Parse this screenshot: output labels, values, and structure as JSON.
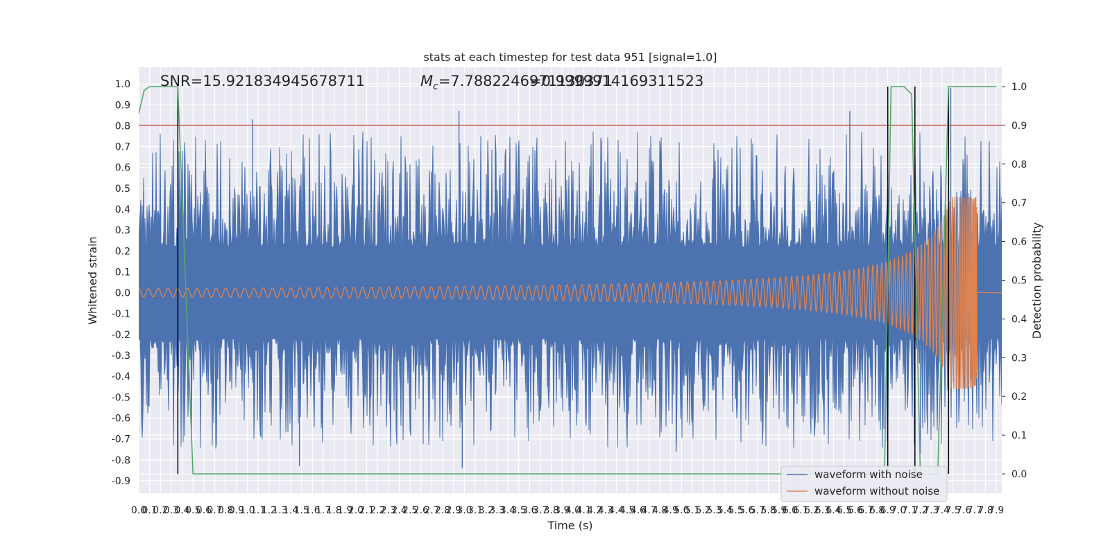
{
  "chart_data": {
    "type": "line",
    "title": "stats at each timestep for test data 951 [signal=1.0]",
    "xlabel": "Time (s)",
    "ylabel": "Whitened strain",
    "y2label": "Detection probability",
    "xlim": [
      0.0,
      7.95
    ],
    "ylim": [
      -0.96,
      1.08
    ],
    "y2lim": [
      -0.05,
      1.05
    ],
    "x_ticks": [
      "0.0",
      "0.1",
      "0.2",
      "0.3",
      "0.4",
      "0.5",
      "0.6",
      "0.7",
      "0.8",
      "0.9",
      "1.0",
      "1.1",
      "1.2",
      "1.3",
      "1.4",
      "1.5",
      "1.6",
      "1.7",
      "1.8",
      "1.9",
      "2.0",
      "2.1",
      "2.2",
      "2.3",
      "2.4",
      "2.5",
      "2.6",
      "2.7",
      "2.8",
      "2.9",
      "3.0",
      "3.1",
      "3.2",
      "3.3",
      "3.4",
      "3.5",
      "3.6",
      "3.7",
      "3.8",
      "3.9",
      "4.0",
      "4.1",
      "4.2",
      "4.3",
      "4.4",
      "4.5",
      "4.6",
      "4.7",
      "4.8",
      "4.9",
      "5.0",
      "5.1",
      "5.2",
      "5.3",
      "5.4",
      "5.5",
      "5.6",
      "5.7",
      "5.8",
      "5.9",
      "6.0",
      "6.1",
      "6.2",
      "6.3",
      "6.4",
      "6.5",
      "6.6",
      "6.7",
      "6.8",
      "6.9",
      "7.0",
      "7.1",
      "7.2",
      "7.3",
      "7.4",
      "7.5",
      "7.6",
      "7.7",
      "7.8",
      "7.9"
    ],
    "y_ticks": [
      "-0.9",
      "-0.8",
      "-0.7",
      "-0.6",
      "-0.5",
      "-0.4",
      "-0.3",
      "-0.2",
      "-0.1",
      "0.0",
      "0.1",
      "0.2",
      "0.3",
      "0.4",
      "0.5",
      "0.6",
      "0.7",
      "0.8",
      "0.9",
      "1.0"
    ],
    "y2_ticks": [
      "0.0",
      "0.1",
      "0.2",
      "0.3",
      "0.4",
      "0.5",
      "0.6",
      "0.7",
      "0.8",
      "0.9",
      "1.0"
    ],
    "annotations": {
      "snr": "SNR=15.921834945678711",
      "mc_symbol": "M",
      "mc_sub": "c",
      "mc_value": "=7.7882246971130371",
      "overlap_value": "=0.9999914169311523"
    },
    "series": [
      {
        "name": "waveform with noise",
        "color": "#4c72b0",
        "envelope_inner": 0.22,
        "peaks_to": 0.87,
        "troughs_to": -0.84
      },
      {
        "name": "waveform without noise",
        "color": "#dd8452",
        "start_amplitude": 0.02,
        "peak_amplitude": 0.46,
        "merger_time": 7.72
      }
    ],
    "detection_probability": {
      "color": "#55a868",
      "points": [
        [
          0.0,
          0.93
        ],
        [
          0.05,
          0.99
        ],
        [
          0.1,
          1.0
        ],
        [
          0.36,
          1.0
        ],
        [
          0.5,
          0.0
        ],
        [
          6.87,
          0.0
        ],
        [
          6.93,
          1.0
        ],
        [
          7.05,
          1.0
        ],
        [
          7.12,
          0.98
        ],
        [
          7.2,
          0.0
        ],
        [
          7.36,
          0.0
        ],
        [
          7.46,
          1.0
        ],
        [
          7.9,
          1.0
        ]
      ]
    },
    "threshold": {
      "y2": 0.9,
      "color": "#c44e52"
    },
    "event_markers_x": [
      0.36,
      6.9,
      7.15,
      7.46
    ],
    "legend_position": "lower-right",
    "grid": true
  }
}
